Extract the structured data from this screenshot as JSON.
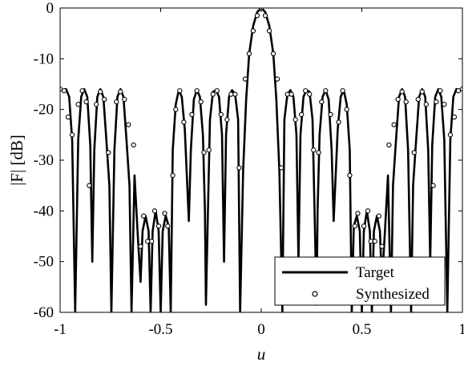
{
  "chart_data": {
    "type": "line",
    "xlabel": "u",
    "ylabel": "|F| [dB]",
    "xlim": [
      -1,
      1
    ],
    "ylim": [
      -60,
      0
    ],
    "xticks": [
      -1,
      -0.5,
      0,
      0.5,
      1
    ],
    "xtick_labels": [
      "-1",
      "-0.5",
      "0",
      "0.5",
      "1"
    ],
    "yticks": [
      0,
      -10,
      -20,
      -30,
      -40,
      -50,
      -60
    ],
    "ytick_labels": [
      "0",
      "-10",
      "-20",
      "-30",
      "-40",
      "-50",
      "-60"
    ],
    "grid": false,
    "legend_position": "bottom-right",
    "line_color": "#000000",
    "series": [
      {
        "name": "Target",
        "style": "line",
        "points": [
          [
            -1.0,
            -16.2
          ],
          [
            -0.97,
            -16.0
          ],
          [
            -0.955,
            -17.5
          ],
          [
            -0.94,
            -26.0
          ],
          [
            -0.925,
            -60.0
          ],
          [
            -0.91,
            -26.0
          ],
          [
            -0.895,
            -17.5
          ],
          [
            -0.88,
            -16.0
          ],
          [
            -0.865,
            -17.5
          ],
          [
            -0.85,
            -27.0
          ],
          [
            -0.84,
            -50.0
          ],
          [
            -0.83,
            -28.0
          ],
          [
            -0.815,
            -17.5
          ],
          [
            -0.8,
            -16.0
          ],
          [
            -0.785,
            -17.5
          ],
          [
            -0.77,
            -26.0
          ],
          [
            -0.755,
            -35.0
          ],
          [
            -0.745,
            -60.0
          ],
          [
            -0.73,
            -28.0
          ],
          [
            -0.715,
            -17.5
          ],
          [
            -0.7,
            -16.0
          ],
          [
            -0.685,
            -17.5
          ],
          [
            -0.67,
            -26.0
          ],
          [
            -0.655,
            -35.0
          ],
          [
            -0.645,
            -60.0
          ],
          [
            -0.63,
            -33.0
          ],
          [
            -0.615,
            -44.0
          ],
          [
            -0.6,
            -54.0
          ],
          [
            -0.59,
            -44.0
          ],
          [
            -0.575,
            -41.0
          ],
          [
            -0.56,
            -44.0
          ],
          [
            -0.55,
            -60.0
          ],
          [
            -0.54,
            -44.0
          ],
          [
            -0.525,
            -40.0
          ],
          [
            -0.51,
            -44.0
          ],
          [
            -0.5,
            -60.0
          ],
          [
            -0.49,
            -44.0
          ],
          [
            -0.475,
            -41.0
          ],
          [
            -0.46,
            -43.0
          ],
          [
            -0.45,
            -60.0
          ],
          [
            -0.44,
            -28.0
          ],
          [
            -0.425,
            -19.0
          ],
          [
            -0.41,
            -16.2
          ],
          [
            -0.395,
            -17.5
          ],
          [
            -0.38,
            -24.0
          ],
          [
            -0.37,
            -33.0
          ],
          [
            -0.36,
            -42.0
          ],
          [
            -0.35,
            -28.0
          ],
          [
            -0.335,
            -18.0
          ],
          [
            -0.32,
            -16.2
          ],
          [
            -0.305,
            -17.5
          ],
          [
            -0.29,
            -25.0
          ],
          [
            -0.28,
            -40.0
          ],
          [
            -0.275,
            -58.5
          ],
          [
            -0.265,
            -40.0
          ],
          [
            -0.255,
            -22.0
          ],
          [
            -0.24,
            -16.5
          ],
          [
            -0.225,
            -16.2
          ],
          [
            -0.21,
            -17.5
          ],
          [
            -0.195,
            -25.0
          ],
          [
            -0.185,
            -50.0
          ],
          [
            -0.175,
            -25.0
          ],
          [
            -0.16,
            -17.5
          ],
          [
            -0.145,
            -16.2
          ],
          [
            -0.13,
            -17.0
          ],
          [
            -0.115,
            -22.0
          ],
          [
            -0.105,
            -60.0
          ],
          [
            -0.09,
            -32.0
          ],
          [
            -0.075,
            -18.0
          ],
          [
            -0.06,
            -9.0
          ],
          [
            -0.04,
            -3.5
          ],
          [
            -0.02,
            -0.8
          ],
          [
            0.0,
            0.0
          ],
          [
            0.02,
            -0.8
          ],
          [
            0.04,
            -3.5
          ],
          [
            0.06,
            -9.0
          ],
          [
            0.075,
            -18.0
          ],
          [
            0.09,
            -32.0
          ],
          [
            0.105,
            -60.0
          ],
          [
            0.115,
            -22.0
          ],
          [
            0.13,
            -17.0
          ],
          [
            0.145,
            -16.2
          ],
          [
            0.16,
            -17.5
          ],
          [
            0.175,
            -25.0
          ],
          [
            0.185,
            -50.0
          ],
          [
            0.195,
            -25.0
          ],
          [
            0.21,
            -17.5
          ],
          [
            0.225,
            -16.2
          ],
          [
            0.24,
            -16.5
          ],
          [
            0.255,
            -22.0
          ],
          [
            0.265,
            -40.0
          ],
          [
            0.275,
            -58.5
          ],
          [
            0.28,
            -40.0
          ],
          [
            0.29,
            -25.0
          ],
          [
            0.305,
            -17.5
          ],
          [
            0.32,
            -16.2
          ],
          [
            0.335,
            -18.0
          ],
          [
            0.35,
            -28.0
          ],
          [
            0.36,
            -42.0
          ],
          [
            0.37,
            -33.0
          ],
          [
            0.38,
            -24.0
          ],
          [
            0.395,
            -17.5
          ],
          [
            0.41,
            -16.2
          ],
          [
            0.425,
            -19.0
          ],
          [
            0.44,
            -28.0
          ],
          [
            0.45,
            -60.0
          ],
          [
            0.46,
            -43.0
          ],
          [
            0.475,
            -41.0
          ],
          [
            0.49,
            -44.0
          ],
          [
            0.5,
            -60.0
          ],
          [
            0.51,
            -44.0
          ],
          [
            0.525,
            -40.0
          ],
          [
            0.54,
            -44.0
          ],
          [
            0.55,
            -60.0
          ],
          [
            0.56,
            -44.0
          ],
          [
            0.575,
            -41.0
          ],
          [
            0.59,
            -44.0
          ],
          [
            0.6,
            -54.0
          ],
          [
            0.615,
            -44.0
          ],
          [
            0.63,
            -33.0
          ],
          [
            0.645,
            -60.0
          ],
          [
            0.655,
            -35.0
          ],
          [
            0.67,
            -26.0
          ],
          [
            0.685,
            -17.5
          ],
          [
            0.7,
            -16.0
          ],
          [
            0.715,
            -17.5
          ],
          [
            0.73,
            -28.0
          ],
          [
            0.745,
            -60.0
          ],
          [
            0.755,
            -35.0
          ],
          [
            0.77,
            -26.0
          ],
          [
            0.785,
            -17.5
          ],
          [
            0.8,
            -16.0
          ],
          [
            0.815,
            -17.5
          ],
          [
            0.83,
            -28.0
          ],
          [
            0.84,
            -50.0
          ],
          [
            0.85,
            -27.0
          ],
          [
            0.865,
            -17.5
          ],
          [
            0.88,
            -16.0
          ],
          [
            0.895,
            -17.5
          ],
          [
            0.91,
            -26.0
          ],
          [
            0.925,
            -60.0
          ],
          [
            0.94,
            -26.0
          ],
          [
            0.955,
            -17.5
          ],
          [
            0.97,
            -16.0
          ],
          [
            1.0,
            -16.2
          ]
        ]
      },
      {
        "name": "Synthesized",
        "style": "markers",
        "points": [
          [
            -1.0,
            -16.0
          ],
          [
            -0.98,
            -16.3
          ],
          [
            -0.96,
            -21.5
          ],
          [
            -0.94,
            -25.0
          ],
          [
            -0.91,
            -19.0
          ],
          [
            -0.89,
            -16.3
          ],
          [
            -0.87,
            -18.5
          ],
          [
            -0.855,
            -35.0
          ],
          [
            -0.82,
            -19.0
          ],
          [
            -0.8,
            -16.5
          ],
          [
            -0.78,
            -18.0
          ],
          [
            -0.76,
            -28.5
          ],
          [
            -0.72,
            -18.5
          ],
          [
            -0.7,
            -16.5
          ],
          [
            -0.68,
            -18.0
          ],
          [
            -0.66,
            -23.0
          ],
          [
            -0.635,
            -27.0
          ],
          [
            -0.6,
            -47.0
          ],
          [
            -0.585,
            -41.0
          ],
          [
            -0.565,
            -46.0
          ],
          [
            -0.545,
            -46.0
          ],
          [
            -0.53,
            -40.0
          ],
          [
            -0.51,
            -43.0
          ],
          [
            -0.48,
            -40.5
          ],
          [
            -0.465,
            -43.0
          ],
          [
            -0.44,
            -33.0
          ],
          [
            -0.425,
            -20.0
          ],
          [
            -0.405,
            -16.3
          ],
          [
            -0.385,
            -22.5
          ],
          [
            -0.345,
            -21.0
          ],
          [
            -0.32,
            -16.3
          ],
          [
            -0.3,
            -18.5
          ],
          [
            -0.285,
            -28.5
          ],
          [
            -0.26,
            -28.0
          ],
          [
            -0.24,
            -17.0
          ],
          [
            -0.22,
            -16.3
          ],
          [
            -0.2,
            -21.0
          ],
          [
            -0.17,
            -22.0
          ],
          [
            -0.15,
            -17.0
          ],
          [
            -0.13,
            -17.0
          ],
          [
            -0.11,
            -31.5
          ],
          [
            -0.08,
            -14.0
          ],
          [
            -0.06,
            -9.0
          ],
          [
            -0.04,
            -4.5
          ],
          [
            -0.02,
            -1.5
          ],
          [
            0.0,
            0.0
          ],
          [
            0.02,
            -1.5
          ],
          [
            0.04,
            -4.5
          ],
          [
            0.06,
            -9.0
          ],
          [
            0.08,
            -14.0
          ],
          [
            0.1,
            -31.5
          ],
          [
            0.13,
            -17.0
          ],
          [
            0.15,
            -17.0
          ],
          [
            0.17,
            -22.0
          ],
          [
            0.2,
            -21.0
          ],
          [
            0.22,
            -16.3
          ],
          [
            0.24,
            -17.0
          ],
          [
            0.26,
            -28.0
          ],
          [
            0.285,
            -28.5
          ],
          [
            0.3,
            -18.5
          ],
          [
            0.32,
            -16.3
          ],
          [
            0.345,
            -21.0
          ],
          [
            0.385,
            -22.5
          ],
          [
            0.405,
            -16.3
          ],
          [
            0.425,
            -20.0
          ],
          [
            0.44,
            -33.0
          ],
          [
            0.465,
            -43.0
          ],
          [
            0.48,
            -40.5
          ],
          [
            0.51,
            -43.0
          ],
          [
            0.53,
            -40.0
          ],
          [
            0.545,
            -46.0
          ],
          [
            0.565,
            -46.0
          ],
          [
            0.585,
            -41.0
          ],
          [
            0.6,
            -47.0
          ],
          [
            0.635,
            -27.0
          ],
          [
            0.66,
            -23.0
          ],
          [
            0.68,
            -18.0
          ],
          [
            0.7,
            -16.5
          ],
          [
            0.72,
            -18.5
          ],
          [
            0.76,
            -28.5
          ],
          [
            0.78,
            -18.0
          ],
          [
            0.8,
            -16.5
          ],
          [
            0.82,
            -19.0
          ],
          [
            0.855,
            -35.0
          ],
          [
            0.87,
            -18.5
          ],
          [
            0.89,
            -16.3
          ],
          [
            0.91,
            -19.0
          ],
          [
            0.94,
            -25.0
          ],
          [
            0.96,
            -21.5
          ],
          [
            0.98,
            -16.3
          ],
          [
            1.0,
            -16.0
          ]
        ]
      }
    ]
  }
}
